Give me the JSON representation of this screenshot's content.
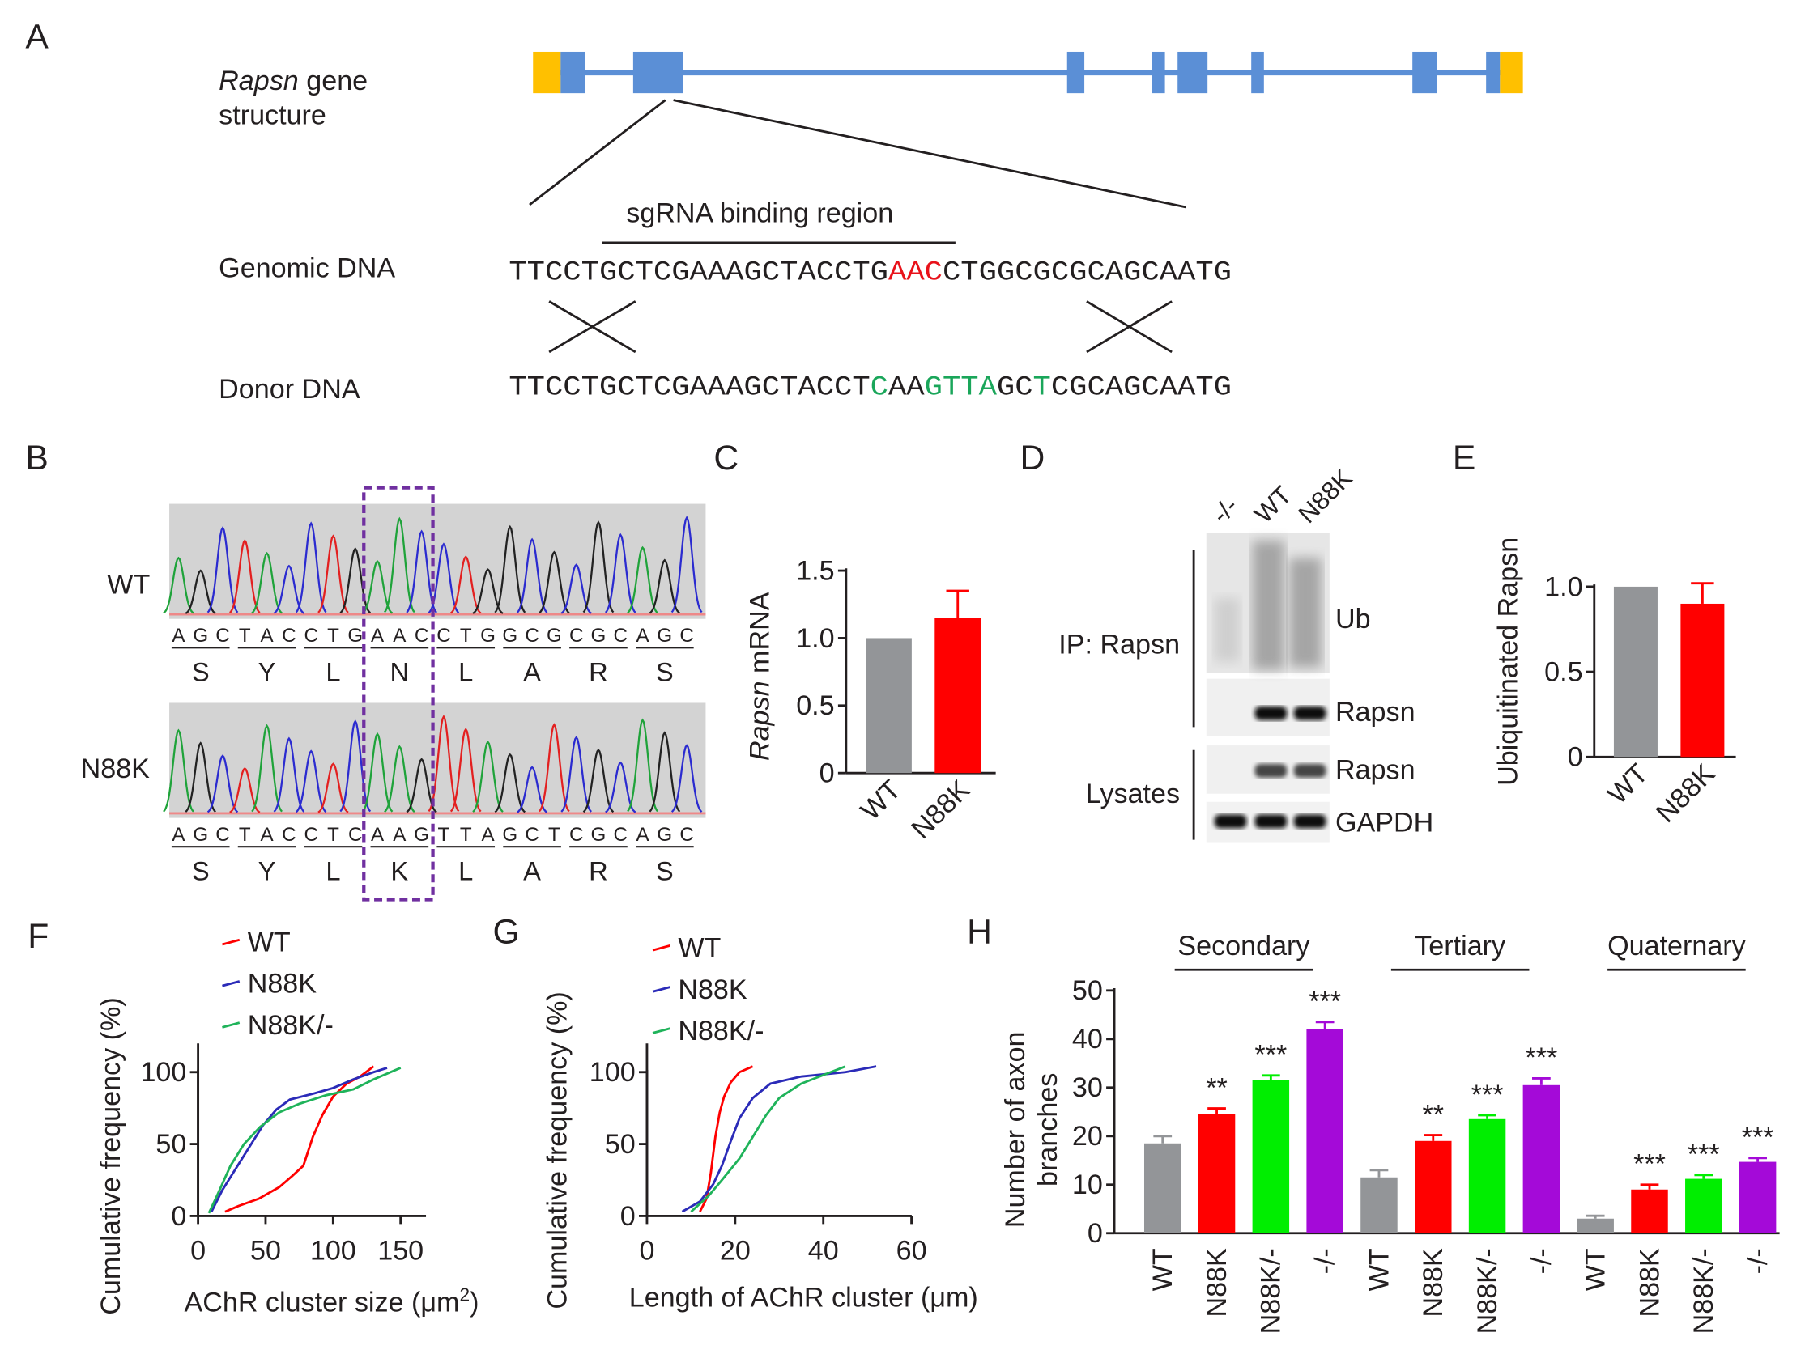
{
  "panel_labels": {
    "a": "A",
    "b": "B",
    "c": "C",
    "d": "D",
    "e": "E",
    "f": "F",
    "g": "G",
    "h": "H"
  },
  "colors": {
    "exon": "#5b8fd6",
    "utr": "#ffc000",
    "wt": "#939598",
    "n88k": "#ff0000",
    "n88k_het": "#00ee00",
    "ko": "#a40ad8",
    "mutation_red": "#e8121a",
    "donor_green": "#1aa65a",
    "box_purple": "#7030a0"
  },
  "panel_a": {
    "gene_label_italic": "Rapsn",
    "gene_label_rest": " gene",
    "gene_label_line2": "structure",
    "sgrna_label": "sgRNA binding region",
    "genomic_label": "Genomic DNA",
    "donor_label": "Donor DNA",
    "genomic_seq": [
      {
        "text": "TTCCTGCTCGAAAGCTACCTG",
        "mark": false
      },
      {
        "text": "AAC",
        "mark": true
      },
      {
        "text": "CTGGCGCGCAGCAATG",
        "mark": false
      }
    ],
    "donor_seq": [
      {
        "text": "TTCCTGCTCGAAAGCTACCT",
        "mark": false
      },
      {
        "text": "C",
        "mark": true
      },
      {
        "text": "AA",
        "mark": false
      },
      {
        "text": "GTTA",
        "mark": true
      },
      {
        "text": "GC",
        "mark": false
      },
      {
        "text": "T",
        "mark": true
      },
      {
        "text": "CGCAGCAATG",
        "mark": false
      }
    ]
  },
  "panel_b": {
    "wt": {
      "label": "WT",
      "bases": [
        "A",
        "G",
        "C",
        "T",
        "A",
        "C",
        "C",
        "T",
        "G",
        "A",
        "A",
        "C",
        "C",
        "T",
        "G",
        "G",
        "C",
        "G",
        "C",
        "G",
        "C",
        "A",
        "G",
        "C"
      ],
      "aa": [
        "S",
        "Y",
        "L",
        "N",
        "L",
        "A",
        "R",
        "S"
      ]
    },
    "n88k": {
      "label": "N88K",
      "bases": [
        "A",
        "G",
        "C",
        "T",
        "A",
        "C",
        "C",
        "T",
        "C",
        "A",
        "A",
        "G",
        "T",
        "T",
        "A",
        "G",
        "C",
        "T",
        "C",
        "G",
        "C",
        "A",
        "G",
        "C"
      ],
      "aa": [
        "S",
        "Y",
        "L",
        "K",
        "L",
        "A",
        "R",
        "S"
      ]
    }
  },
  "panel_d": {
    "lanes": [
      "-/-",
      "WT",
      "N88K"
    ],
    "ip_label": "IP: Rapsn",
    "lysates_label": "Lysates",
    "blots": [
      "Ub",
      "Rapsn",
      "Rapsn",
      "GAPDH"
    ]
  },
  "chart_data": [
    {
      "panel": "C",
      "type": "bar",
      "categories": [
        "WT",
        "N88K"
      ],
      "values": [
        1.0,
        1.15
      ],
      "errors": [
        0,
        0.2
      ],
      "ylabel_italic": "Rapsn",
      "ylabel_rest": " mRNA",
      "ylim": [
        0,
        1.5
      ],
      "yticks": [
        "0",
        "0.5",
        "1.0",
        "1.5"
      ]
    },
    {
      "panel": "E",
      "type": "bar",
      "categories": [
        "WT",
        "N88K"
      ],
      "values": [
        1.0,
        0.9
      ],
      "errors": [
        0,
        0.12
      ],
      "ylabel": "Ubiquitinated Rapsn",
      "ylim": [
        0,
        1.0
      ],
      "yticks": [
        "0",
        "0.5",
        "1.0"
      ]
    },
    {
      "panel": "F",
      "type": "line",
      "xlabel_main": "AChR cluster size (μm",
      "xlabel_sup": "2",
      "xlabel_end": ")",
      "ylabel": "Cumulative frequency (%)",
      "xlim": [
        0,
        160
      ],
      "ylim": [
        0,
        110
      ],
      "xticks": [
        "0",
        "50",
        "100",
        "150"
      ],
      "yticks": [
        "0",
        "50",
        "100"
      ],
      "legend": "top",
      "series": [
        {
          "name": "WT",
          "color": "#ff0000",
          "points": [
            [
              20,
              3
            ],
            [
              30,
              7
            ],
            [
              45,
              12
            ],
            [
              60,
              20
            ],
            [
              70,
              28
            ],
            [
              78,
              35
            ],
            [
              85,
              55
            ],
            [
              92,
              70
            ],
            [
              100,
              83
            ],
            [
              110,
              92
            ],
            [
              120,
              97
            ],
            [
              130,
              104
            ]
          ]
        },
        {
          "name": "N88K",
          "color": "#2b2bb8",
          "points": [
            [
              10,
              3
            ],
            [
              18,
              18
            ],
            [
              28,
              33
            ],
            [
              38,
              48
            ],
            [
              48,
              63
            ],
            [
              58,
              74
            ],
            [
              68,
              81
            ],
            [
              85,
              85
            ],
            [
              100,
              89
            ],
            [
              115,
              95
            ],
            [
              130,
              100
            ],
            [
              140,
              103
            ]
          ]
        },
        {
          "name": "N88K/-",
          "color": "#1fb35a",
          "points": [
            [
              8,
              2
            ],
            [
              14,
              14
            ],
            [
              24,
              35
            ],
            [
              34,
              50
            ],
            [
              46,
              62
            ],
            [
              60,
              72
            ],
            [
              75,
              78
            ],
            [
              95,
              84
            ],
            [
              115,
              88
            ],
            [
              130,
              95
            ],
            [
              150,
              103
            ]
          ]
        }
      ]
    },
    {
      "panel": "G",
      "type": "line",
      "xlabel": "Length of AChR cluster (μm)",
      "ylabel": "Cumulative frequency (%)",
      "xlim": [
        0,
        60
      ],
      "ylim": [
        0,
        110
      ],
      "xticks": [
        "0",
        "20",
        "40",
        "60"
      ],
      "yticks": [
        "0",
        "50",
        "100"
      ],
      "legend": "top",
      "series": [
        {
          "name": "WT",
          "color": "#ff0000",
          "points": [
            [
              12,
              3
            ],
            [
              13.5,
              12
            ],
            [
              14.5,
              30
            ],
            [
              15.5,
              55
            ],
            [
              16.5,
              72
            ],
            [
              17.5,
              83
            ],
            [
              19,
              93
            ],
            [
              21,
              100
            ],
            [
              24,
              104
            ]
          ]
        },
        {
          "name": "N88K",
          "color": "#2b2bb8",
          "points": [
            [
              8,
              3
            ],
            [
              12,
              10
            ],
            [
              15,
              22
            ],
            [
              17,
              35
            ],
            [
              19,
              52
            ],
            [
              21,
              68
            ],
            [
              24,
              82
            ],
            [
              28,
              92
            ],
            [
              35,
              97
            ],
            [
              45,
              100
            ],
            [
              52,
              104
            ]
          ]
        },
        {
          "name": "N88K/-",
          "color": "#1fb35a",
          "points": [
            [
              10,
              3
            ],
            [
              14,
              14
            ],
            [
              17,
              25
            ],
            [
              21,
              40
            ],
            [
              24,
              55
            ],
            [
              27,
              70
            ],
            [
              30,
              82
            ],
            [
              35,
              92
            ],
            [
              40,
              98
            ],
            [
              45,
              104
            ]
          ]
        }
      ]
    },
    {
      "panel": "H",
      "type": "bar",
      "ylabel_line1": "Number of axon",
      "ylabel_line2": "branches",
      "ylim": [
        0,
        50
      ],
      "yticks": [
        "0",
        "10",
        "20",
        "30",
        "40",
        "50"
      ],
      "groups": [
        {
          "name": "Secondary",
          "bars": [
            {
              "label": "WT",
              "value": 18.5,
              "error": 1.5,
              "sig": ""
            },
            {
              "label": "N88K",
              "value": 24.5,
              "error": 1.2,
              "sig": "**"
            },
            {
              "label": "N88K/-",
              "value": 31.5,
              "error": 1.0,
              "sig": "***"
            },
            {
              "label": "-/-",
              "value": 42,
              "error": 1.5,
              "sig": "***"
            }
          ]
        },
        {
          "name": "Tertiary",
          "bars": [
            {
              "label": "WT",
              "value": 11.5,
              "error": 1.5,
              "sig": ""
            },
            {
              "label": "N88K",
              "value": 19,
              "error": 1.2,
              "sig": "**"
            },
            {
              "label": "N88K/-",
              "value": 23.5,
              "error": 0.8,
              "sig": "***"
            },
            {
              "label": "-/-",
              "value": 30.5,
              "error": 1.4,
              "sig": "***"
            }
          ]
        },
        {
          "name": "Quaternary",
          "bars": [
            {
              "label": "WT",
              "value": 3,
              "error": 0.6,
              "sig": ""
            },
            {
              "label": "N88K",
              "value": 9,
              "error": 1.0,
              "sig": "***"
            },
            {
              "label": "N88K/-",
              "value": 11.2,
              "error": 0.8,
              "sig": "***"
            },
            {
              "label": "-/-",
              "value": 14.7,
              "error": 0.8,
              "sig": "***"
            }
          ]
        }
      ]
    }
  ]
}
